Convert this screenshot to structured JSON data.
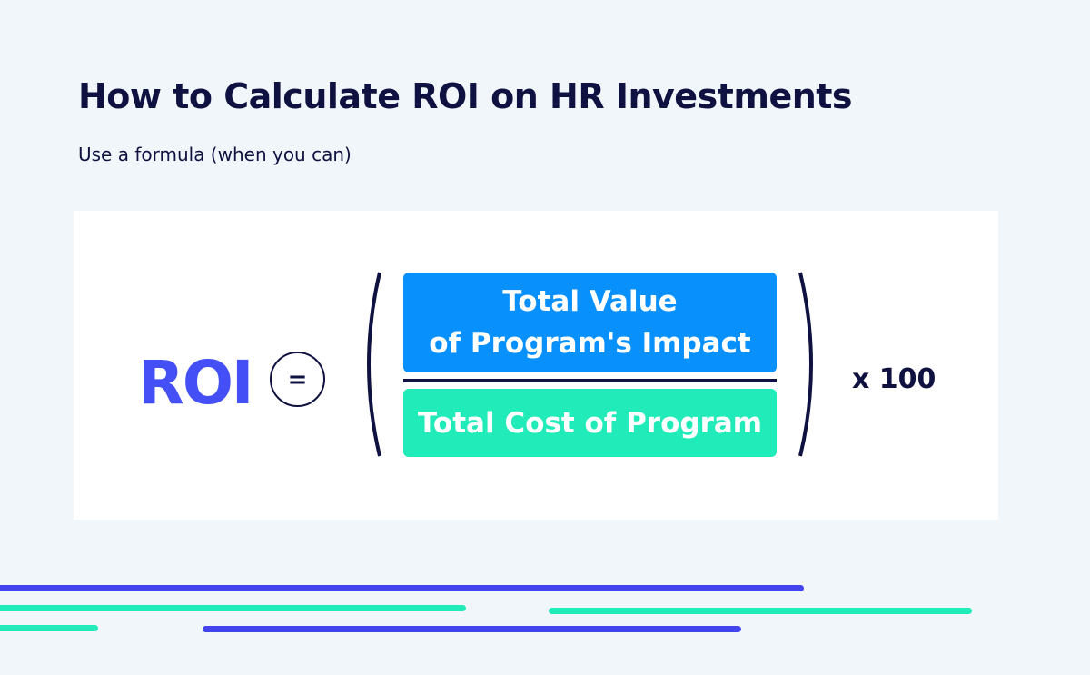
{
  "header": {
    "title": "How to Calculate ROI on HR Investments",
    "subtitle": "Use a formula (when you can)"
  },
  "formula": {
    "lhs": "ROI",
    "equals": "=",
    "numerator_line1": "Total Value",
    "numerator_line2": "of Program's Impact",
    "denominator": "Total Cost of Program",
    "multiplier": "x 100"
  },
  "colors": {
    "roi": "#4450f5",
    "numerator": "#0890fd",
    "denominator": "#20ebb9",
    "dark": "#0f1140",
    "blue_line": "#4444ee",
    "green_line": "#20ebb9"
  }
}
